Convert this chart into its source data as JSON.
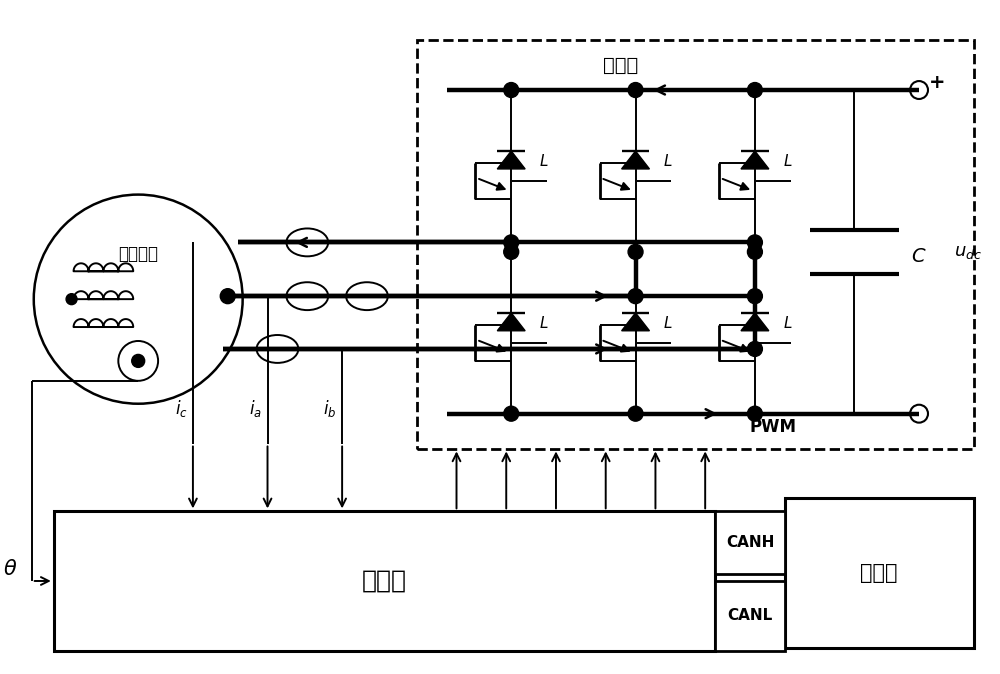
{
  "bg_color": "#ffffff",
  "line_color": "#000000",
  "motor_label": "永磁电机",
  "main_circuit_label": "主电路",
  "controller_label": "控制器",
  "upper_label": "上位机",
  "canh_label": "CANH",
  "canl_label": "CANL",
  "pwm_label": "PWM"
}
